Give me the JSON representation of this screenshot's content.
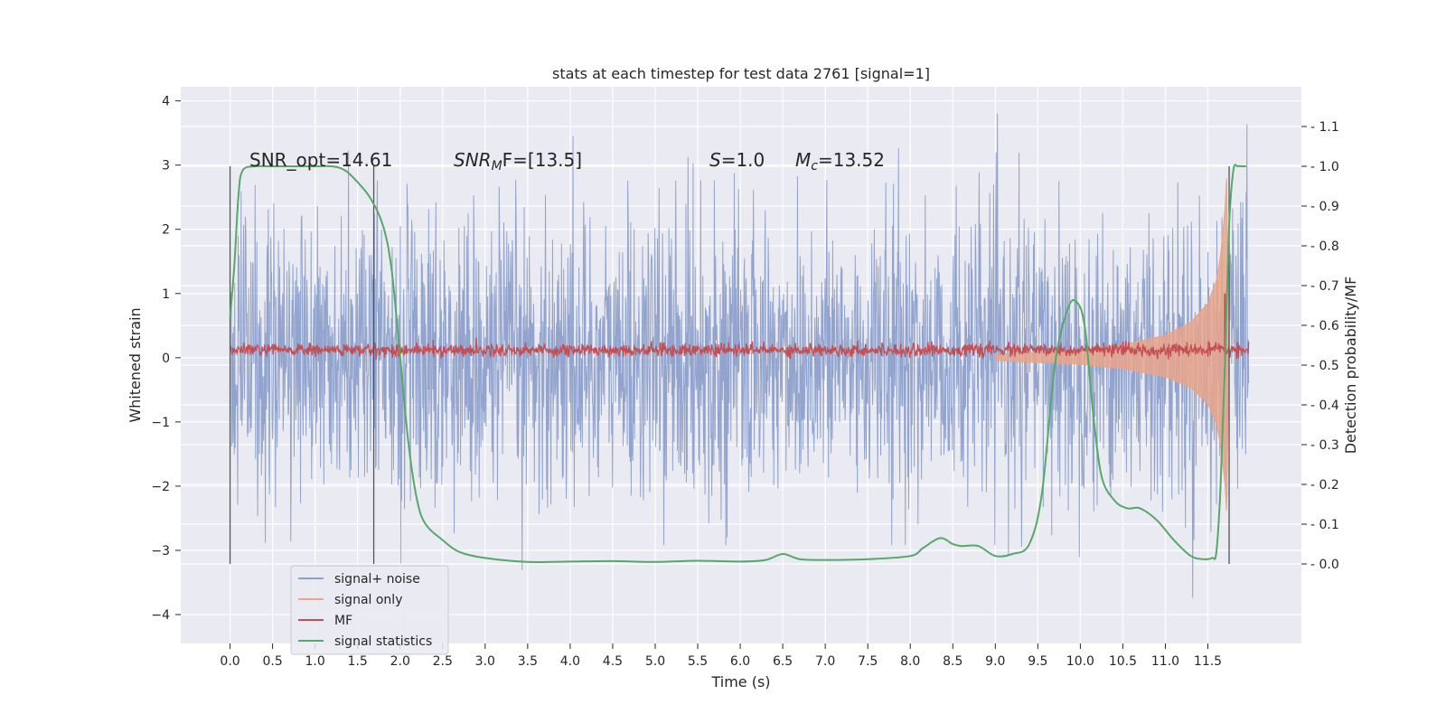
{
  "chart_data": {
    "type": "line",
    "title": "stats at each timestep for test data 2761 [signal=1]",
    "xlabel": "Time (s)",
    "ylabel": "Whitened strain",
    "ylabel_right": "Detection probability/MF",
    "xlim": [
      -0.58,
      12.6
    ],
    "ylim": [
      -4.45,
      4.22
    ],
    "ylim_right": [
      -0.2,
      1.2
    ],
    "x_ticks": [
      0.0,
      0.5,
      1.0,
      1.5,
      2.0,
      2.5,
      3.0,
      3.5,
      4.0,
      4.5,
      5.0,
      5.5,
      6.0,
      6.5,
      7.0,
      7.5,
      8.0,
      8.5,
      9.0,
      9.5,
      10.0,
      10.5,
      11.0,
      11.5
    ],
    "x_tick_labels": [
      "0.0",
      "0.5",
      "1.0",
      "1.5",
      "2.0",
      "2.5",
      "3.0",
      "3.5",
      "4.0",
      "4.5",
      "5.0",
      "5.5",
      "6.0",
      "6.5",
      "7.0",
      "7.5",
      "8.0",
      "8.5",
      "9.0",
      "9.5",
      "10.0",
      "10.5",
      "11.0",
      "11.5"
    ],
    "y_ticks": [
      -4,
      -3,
      -2,
      -1,
      0,
      1,
      2,
      3,
      4
    ],
    "y_tick_labels": [
      "−4",
      "−3",
      "−2",
      "−1",
      "0",
      "1",
      "2",
      "3",
      "4"
    ],
    "y_ticks_right": [
      0.0,
      0.1,
      0.2,
      0.3,
      0.4,
      0.5,
      0.6,
      0.7,
      0.8,
      0.9,
      1.0,
      1.1
    ],
    "y_tick_labels_right": [
      "0.0",
      "0.1",
      "0.2",
      "0.3",
      "0.4",
      "0.5",
      "0.6",
      "0.7",
      "0.8",
      "0.9",
      "1.0",
      "1.1"
    ],
    "grid": true,
    "legend_position": "lower-left",
    "annotations": {
      "snr_opt": "SNR_opt=14.61",
      "snr_mf_label": "SNR",
      "snr_mf_sub": "M",
      "snr_mf_rest": "F=[13.5]",
      "s_label": "S",
      "s_rest": "=1.0",
      "mc_label": "M",
      "mc_sub": "c",
      "mc_rest": "=13.52"
    },
    "vertical_markers": [
      0.0,
      1.69,
      11.75
    ],
    "series": [
      {
        "name": "signal+ noise",
        "color": "#8da0cb",
        "axis": "left",
        "x_range": [
          0.0,
          11.98
        ],
        "envelope_typical": 1.1,
        "envelope_peak": 3.8
      },
      {
        "name": "signal only",
        "color": "#e8a58a",
        "axis": "left",
        "x": [
          9.0,
          10.0,
          10.5,
          11.0,
          11.3,
          11.5,
          11.6,
          11.65,
          11.7,
          11.72,
          11.75
        ],
        "amplitude": [
          0.05,
          0.12,
          0.2,
          0.35,
          0.55,
          0.85,
          1.2,
          1.6,
          2.3,
          2.8,
          0.0
        ]
      },
      {
        "name": "MF",
        "color": "#c44e52",
        "axis": "left",
        "x_range": [
          0.0,
          11.98
        ],
        "level": 0.12,
        "spike_x": 11.7,
        "spike_y": 1.0
      },
      {
        "name": "signal statistics",
        "color": "#55a868",
        "axis": "right",
        "x": [
          0.0,
          0.05,
          0.1,
          0.15,
          0.3,
          0.5,
          0.8,
          1.0,
          1.2,
          1.35,
          1.5,
          1.65,
          1.8,
          1.9,
          2.0,
          2.1,
          2.2,
          2.3,
          2.5,
          2.7,
          3.0,
          3.5,
          4.0,
          4.5,
          5.0,
          5.5,
          6.0,
          6.3,
          6.5,
          6.7,
          7.0,
          7.5,
          8.0,
          8.15,
          8.35,
          8.5,
          8.6,
          8.8,
          9.0,
          9.2,
          9.4,
          9.55,
          9.7,
          9.85,
          9.95,
          10.05,
          10.15,
          10.25,
          10.4,
          10.55,
          10.7,
          10.9,
          11.1,
          11.3,
          11.45,
          11.55,
          11.6,
          11.65,
          11.7,
          11.75,
          11.8,
          11.85,
          11.9,
          11.95
        ],
        "y": [
          0.62,
          0.75,
          0.93,
          0.99,
          1.0,
          1.0,
          1.0,
          1.0,
          1.0,
          0.99,
          0.96,
          0.92,
          0.85,
          0.74,
          0.52,
          0.3,
          0.16,
          0.1,
          0.06,
          0.03,
          0.015,
          0.005,
          0.006,
          0.007,
          0.005,
          0.008,
          0.006,
          0.01,
          0.025,
          0.012,
          0.01,
          0.012,
          0.02,
          0.04,
          0.065,
          0.05,
          0.045,
          0.045,
          0.02,
          0.025,
          0.05,
          0.18,
          0.5,
          0.64,
          0.66,
          0.6,
          0.38,
          0.22,
          0.16,
          0.14,
          0.14,
          0.11,
          0.06,
          0.02,
          0.012,
          0.015,
          0.03,
          0.2,
          0.5,
          0.85,
          0.99,
          1.0,
          1.0,
          1.0
        ]
      }
    ]
  }
}
